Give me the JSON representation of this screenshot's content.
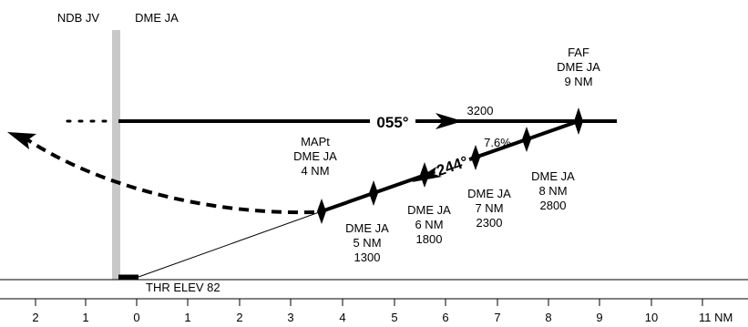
{
  "header": {
    "ndb": "NDB JV",
    "dme": "DME JA"
  },
  "altitude": "3200",
  "course_outbound": "055°",
  "course_inbound": "244°",
  "glide_angle": "7.6%",
  "threshold": "THR ELEV 82",
  "fixes": [
    {
      "id": "faf",
      "lines": [
        "FAF",
        "DME JA",
        "9 NM"
      ]
    },
    {
      "id": "dme8",
      "lines": [
        "DME JA",
        "8 NM",
        "2800"
      ]
    },
    {
      "id": "dme7",
      "lines": [
        "DME JA",
        "7 NM",
        "2300"
      ]
    },
    {
      "id": "dme6",
      "lines": [
        "DME JA",
        "6 NM",
        "1800"
      ]
    },
    {
      "id": "dme5",
      "lines": [
        "DME JA",
        "5 NM",
        "1300"
      ]
    },
    {
      "id": "mapt",
      "lines": [
        "MAPt",
        "DME JA",
        "4 NM"
      ]
    }
  ],
  "axis_ticks": [
    "2",
    "1",
    "0",
    "1",
    "2",
    "3",
    "4",
    "5",
    "6",
    "7",
    "8",
    "9",
    "10",
    "11 NM"
  ],
  "colors": {
    "ink": "#000000",
    "navaid_bar": "#c8c8c8",
    "background": "#ffffff"
  }
}
